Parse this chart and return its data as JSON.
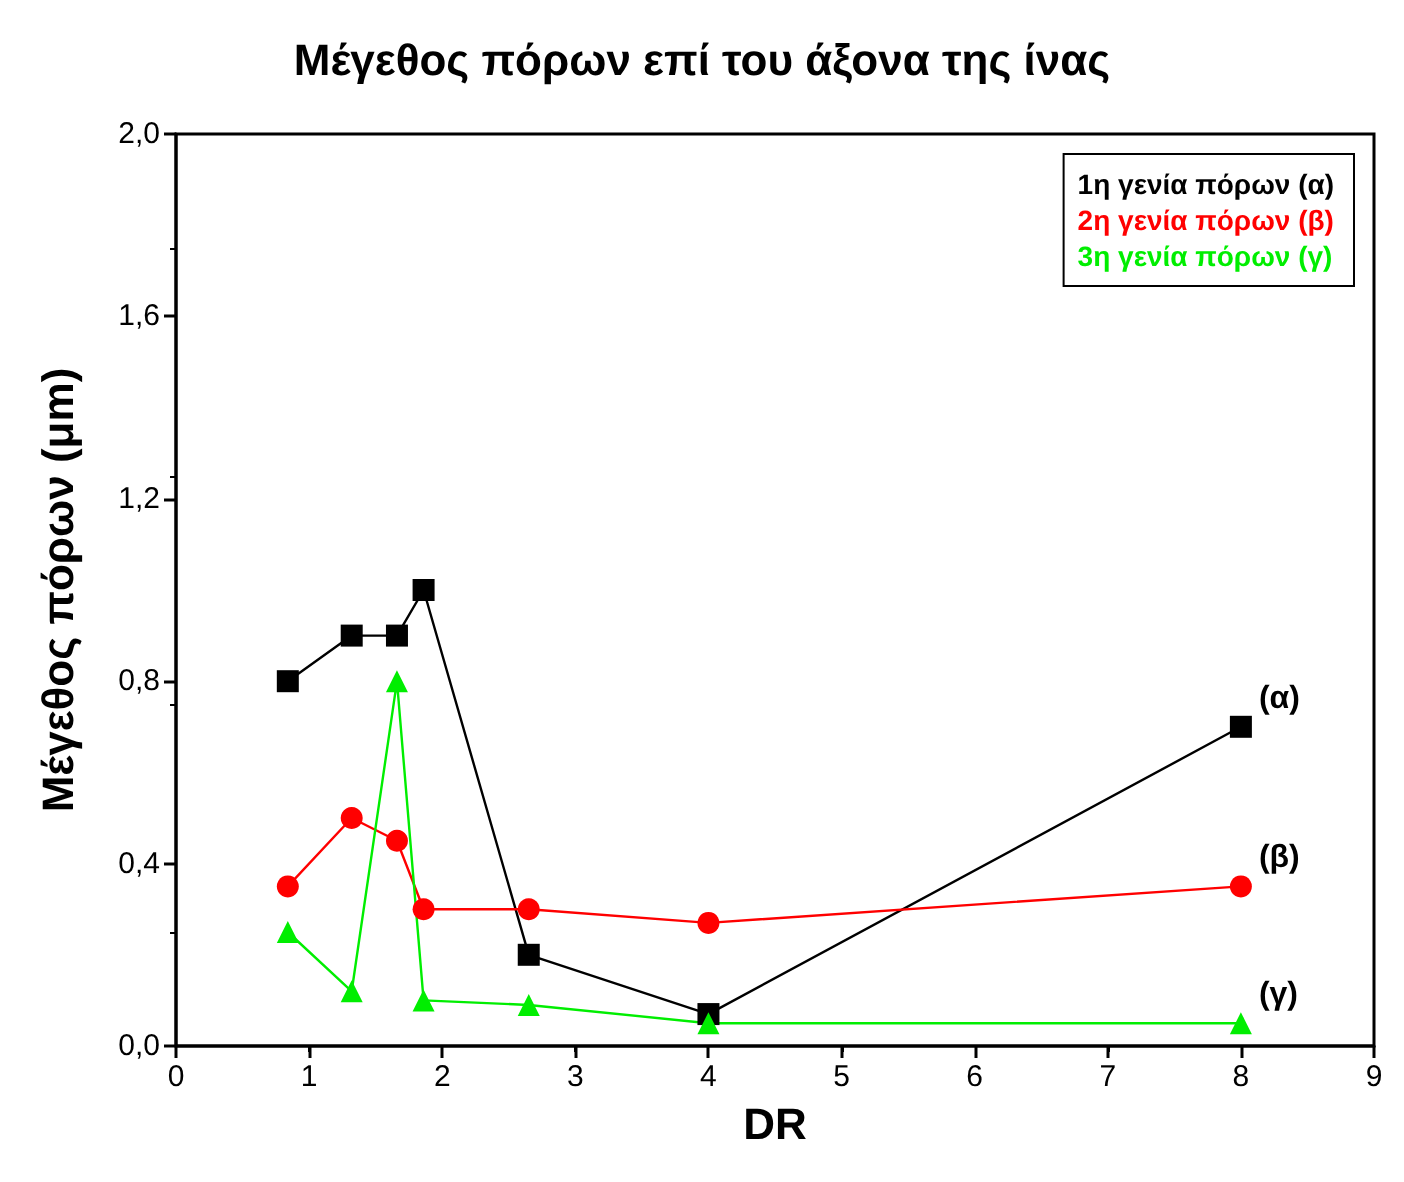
{
  "chart_data": {
    "type": "line",
    "title": "Μέγεθος πόρων επί του άξονα της ίνας",
    "xlabel": "DR",
    "ylabel": "Μέγεθος πόρων (μm)",
    "series": [
      {
        "name": "1η γενία πόρων (α)",
        "color": "#000000",
        "marker": "square",
        "x": [
          0.84,
          1.32,
          1.66,
          1.86,
          2.65,
          4,
          8
        ],
        "values": [
          0.8,
          0.9,
          0.9,
          1.0,
          0.2,
          0.07,
          0.7
        ]
      },
      {
        "name": "2η γενία πόρων (β)",
        "color": "#ff0000",
        "marker": "circle",
        "x": [
          0.84,
          1.32,
          1.66,
          1.86,
          2.65,
          4,
          8
        ],
        "values": [
          0.35,
          0.5,
          0.45,
          0.3,
          0.3,
          0.27,
          0.35
        ]
      },
      {
        "name": "3η γενία πόρων (γ)",
        "color": "#00ee00",
        "marker": "triangle",
        "x": [
          0.84,
          1.32,
          1.66,
          1.86,
          2.65,
          4,
          8
        ],
        "values": [
          0.25,
          0.12,
          0.8,
          0.1,
          0.09,
          0.05,
          0.05
        ]
      }
    ],
    "xlim": [
      0,
      9
    ],
    "xticks": [
      0,
      1,
      2,
      3,
      4,
      5,
      6,
      7,
      8,
      9
    ],
    "ylim": [
      0,
      2
    ],
    "yticks": [
      {
        "value": 0,
        "label": "0,0"
      },
      {
        "value": 0.4,
        "label": "0,4"
      },
      {
        "value": 0.8,
        "label": "0,8"
      },
      {
        "value": 1.2,
        "label": "1,2"
      },
      {
        "value": 1.6,
        "label": "1,6"
      },
      {
        "value": 2.0,
        "label": "2,0"
      }
    ],
    "annotations": [
      "(α)",
      "(β)",
      "(γ)"
    ],
    "legend": "top right",
    "grid": false,
    "line_style": "solid"
  }
}
